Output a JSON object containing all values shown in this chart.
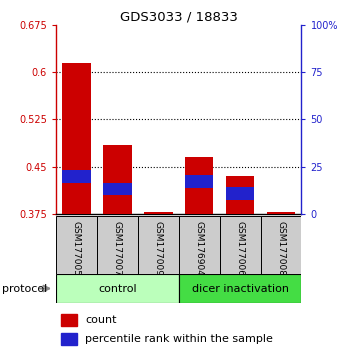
{
  "title": "GDS3033 / 18833",
  "samples": [
    "GSM177005",
    "GSM177007",
    "GSM177009",
    "GSM176904",
    "GSM177006",
    "GSM177008"
  ],
  "groups": [
    "control",
    "control",
    "control",
    "dicer inactivation",
    "dicer inactivation",
    "dicer inactivation"
  ],
  "red_values": [
    0.615,
    0.485,
    0.3785,
    0.465,
    0.435,
    0.3785
  ],
  "blue_values": [
    0.435,
    0.415,
    null,
    0.427,
    0.408,
    null
  ],
  "ymin": 0.375,
  "ymax": 0.675,
  "yticks": [
    0.375,
    0.45,
    0.525,
    0.6,
    0.675
  ],
  "ytick_labels": [
    "0.375",
    "0.45",
    "0.525",
    "0.6",
    "0.675"
  ],
  "right_yticks_pct": [
    0,
    25,
    50,
    75,
    100
  ],
  "right_ytick_labels": [
    "0",
    "25",
    "50",
    "75",
    "100%"
  ],
  "grid_values": [
    0.6,
    0.525,
    0.45
  ],
  "red_color": "#cc0000",
  "blue_color": "#2222cc",
  "bar_width": 0.7,
  "control_color": "#bbffbb",
  "dicer_color": "#44dd44",
  "label_bg_color": "#cccccc",
  "legend_red_label": "count",
  "legend_blue_label": "percentile rank within the sample"
}
